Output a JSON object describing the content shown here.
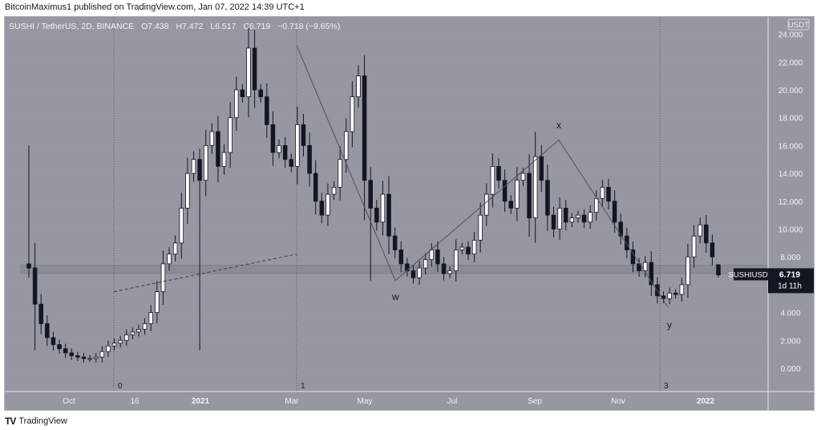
{
  "header": {
    "published_text": "BitcoinMaximus1 published on TradingView.com, Jan 07, 2022 14:39 UTC+1"
  },
  "legend": {
    "symbol": "SUSHI / TetherUS, 2D, BINANCE",
    "open": "O7.438",
    "high": "H7.472",
    "low": "L6.517",
    "close": "C6.719",
    "change": "−0.718 (−9.65%)"
  },
  "price_scale": {
    "currency": "USDT",
    "labels": [
      "24.000",
      "22.000",
      "20.000",
      "18.000",
      "16.000",
      "14.000",
      "12.000",
      "10.000",
      "8.000",
      "4.000",
      "2.000",
      "0.000"
    ]
  },
  "price_badge": {
    "symbol": "SUSHIUSDT",
    "price": "6.719",
    "countdown": "1d 11h"
  },
  "time_axis": {
    "labels": [
      "Oct",
      "16",
      "2021",
      "Mar",
      "May",
      "Jul",
      "Sep",
      "Nov",
      "2022"
    ]
  },
  "annotations": {
    "wave_labels": [
      "w",
      "x",
      "y"
    ],
    "vertical_line_labels": [
      "0",
      "1",
      "3"
    ]
  },
  "footer": {
    "logo_mark": "TV",
    "brand": "TradingView"
  },
  "colors": {
    "background": "#9598a1",
    "bull_candle": "#ffffff",
    "bear_candle": "#131722",
    "support_zone": "#80838c",
    "badge_bg": "#131722"
  },
  "chart_data": {
    "type": "candlestick",
    "title": "SUSHI / TetherUS, 2D, BINANCE",
    "xlabel": "",
    "ylabel": "USDT",
    "ylim": [
      -1.7,
      25
    ],
    "x_ticks": [
      "Oct",
      "16",
      "2021",
      "Mar",
      "May",
      "Jul",
      "Sep",
      "Nov",
      "2022"
    ],
    "y_ticks": [
      0,
      2,
      4,
      8,
      10,
      12,
      14,
      16,
      18,
      20,
      22,
      24
    ],
    "last_bar": {
      "open": 7.438,
      "high": 7.472,
      "low": 6.517,
      "close": 6.719,
      "change": -0.718,
      "change_pct": -9.65
    },
    "support_zone": [
      6.8,
      7.4
    ],
    "key_points": [
      {
        "label": "Sep 2020 spike high",
        "value": 16.0
      },
      {
        "label": "Sep 2020 low",
        "value": 0.7
      },
      {
        "label": "wave 1 top (Mar 2021)",
        "value": 23.0
      },
      {
        "label": "w (late May 2021)",
        "value": 6.3
      },
      {
        "label": "x (Sep 2021)",
        "value": 16.4
      },
      {
        "label": "y (Dec 2021)",
        "value": 4.4
      },
      {
        "label": "Jan 2022 rebound high",
        "value": 10.6
      },
      {
        "label": "last close",
        "value": 6.719
      }
    ],
    "approx_closes": [
      7.2,
      4.6,
      3.2,
      2.2,
      1.7,
      1.4,
      1.1,
      0.9,
      0.8,
      0.7,
      0.7,
      0.8,
      1.2,
      1.6,
      1.8,
      2.0,
      2.4,
      2.6,
      2.8,
      3.2,
      4.0,
      5.5,
      7.5,
      8.2,
      9.0,
      11.5,
      14.0,
      15.0,
      13.5,
      16.0,
      17.0,
      14.5,
      15.5,
      18.0,
      20.0,
      19.5,
      23.0,
      20.0,
      19.5,
      17.5,
      15.5,
      16.0,
      15.0,
      14.5,
      17.5,
      16.0,
      14.0,
      12.0,
      11.0,
      12.5,
      13.0,
      15.0,
      17.0,
      19.5,
      21.0,
      13.5,
      11.5,
      10.5,
      12.5,
      9.5,
      8.5,
      7.5,
      7.0,
      6.5,
      7.2,
      7.8,
      8.5,
      7.5,
      6.8,
      7.0,
      8.5,
      8.7,
      8.2,
      9.2,
      11.0,
      12.5,
      14.5,
      13.5,
      12.0,
      11.5,
      13.5,
      14.0,
      10.8,
      15.2,
      13.5,
      11.0,
      10.0,
      11.5,
      10.5,
      10.8,
      11.0,
      10.5,
      11.2,
      12.2,
      13.0,
      12.0,
      10.5,
      9.5,
      8.5,
      7.5,
      7.0,
      7.6,
      6.0,
      5.2,
      5.0,
      5.4,
      5.3,
      6.0,
      8.0,
      9.5,
      10.3,
      9.0,
      8.0,
      6.7
    ]
  }
}
